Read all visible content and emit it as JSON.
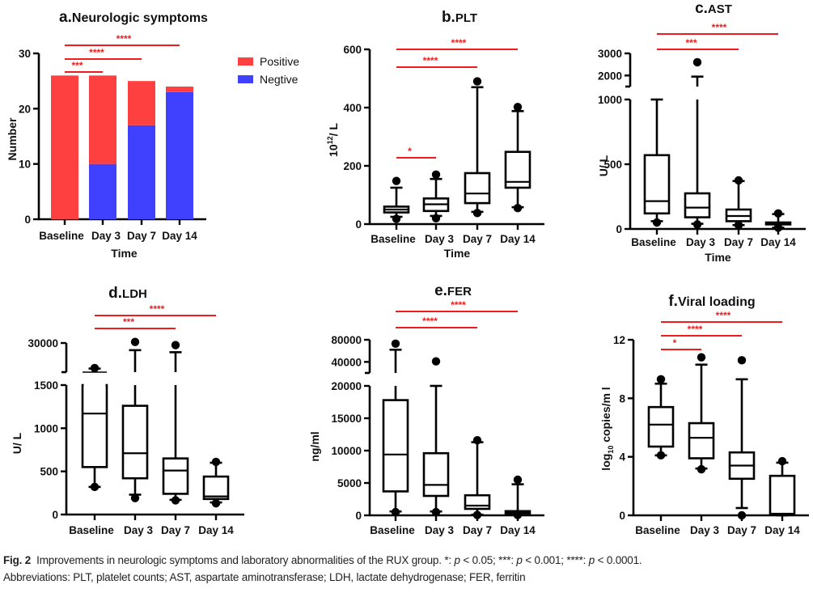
{
  "chart_data": [
    {
      "id": "a",
      "type": "bar",
      "stacked": true,
      "title_prefix": "a.",
      "title": "Neurologic symptoms",
      "xlabel": "Time",
      "ylabel": "Number",
      "categories": [
        "Baseline",
        "Day 3",
        "Day 7",
        "Day 14"
      ],
      "series": [
        {
          "name": "Negtive",
          "values": [
            0,
            10,
            17,
            23
          ],
          "color": "#4040ff"
        },
        {
          "name": "Positive",
          "values": [
            26,
            16,
            8,
            1
          ],
          "color": "#ff4040"
        }
      ],
      "legend": [
        "Positive",
        "Negtive"
      ],
      "legend_position": "right",
      "ylim": [
        0,
        30
      ],
      "yticks": [
        "0",
        "10",
        "20",
        "30"
      ],
      "significance": [
        {
          "from": "Baseline",
          "to": "Day 3",
          "label": "***"
        },
        {
          "from": "Baseline",
          "to": "Day 7",
          "label": "****"
        },
        {
          "from": "Baseline",
          "to": "Day 14",
          "label": "****"
        }
      ]
    },
    {
      "id": "b",
      "type": "box",
      "title_prefix": "b.",
      "title": "PLT",
      "xlabel": "Time",
      "ylabel_base": "10",
      "ylabel_sup": "12",
      "ylabel_rest": "/ L",
      "categories": [
        "Baseline",
        "Day 3",
        "Day 7",
        "Day 14"
      ],
      "ylim": [
        0,
        600
      ],
      "yticks": [
        "0",
        "200",
        "400",
        "600"
      ],
      "boxes": [
        {
          "min": 25,
          "q1": 40,
          "median": 50,
          "q3": 60,
          "max": 125,
          "outliers": [
            148,
            18
          ]
        },
        {
          "min": 28,
          "q1": 45,
          "median": 68,
          "q3": 88,
          "max": 155,
          "outliers": [
            170,
            20
          ]
        },
        {
          "min": 42,
          "q1": 72,
          "median": 105,
          "q3": 175,
          "max": 470,
          "outliers": [
            490,
            38
          ]
        },
        {
          "min": 58,
          "q1": 125,
          "median": 145,
          "q3": 248,
          "max": 388,
          "outliers": [
            402,
            55
          ]
        }
      ],
      "significance": [
        {
          "from": "Baseline",
          "to": "Day 3",
          "label": "*"
        },
        {
          "from": "Baseline",
          "to": "Day 7",
          "label": "****"
        },
        {
          "from": "Baseline",
          "to": "Day 14",
          "label": "****"
        }
      ]
    },
    {
      "id": "c",
      "type": "box",
      "title_prefix": "c.",
      "title": "AST",
      "xlabel": "Time",
      "ylabel": "U/ L",
      "categories": [
        "Baseline",
        "Day 3",
        "Day 7",
        "Day 14"
      ],
      "ylim_lower": [
        0,
        1000
      ],
      "ylim_upper": [
        1500,
        3000
      ],
      "yticks_lower": [
        "0",
        "500",
        "1000"
      ],
      "yticks_upper": [
        "2000",
        "3000"
      ],
      "axis_break": true,
      "boxes": [
        {
          "min": 60,
          "q1": 120,
          "median": 215,
          "q3": 570,
          "max": 1000,
          "outliers": [
            50
          ]
        },
        {
          "min": 40,
          "q1": 90,
          "median": 165,
          "q3": 275,
          "max": 1950,
          "outliers": [
            2600,
            35
          ]
        },
        {
          "min": 30,
          "q1": 60,
          "median": 100,
          "q3": 150,
          "max": 370,
          "outliers": [
            375,
            30
          ]
        },
        {
          "min": 10,
          "q1": 35,
          "median": 45,
          "q3": 50,
          "max": 115,
          "outliers": [
            120,
            10
          ]
        }
      ],
      "significance": [
        {
          "from": "Baseline",
          "to": "Day 7",
          "label": "***"
        },
        {
          "from": "Baseline",
          "to": "Day 14",
          "label": "****"
        }
      ]
    },
    {
      "id": "d",
      "type": "box",
      "title_prefix": "d.",
      "title": "LDH",
      "xlabel": "Time",
      "ylabel": "U/ L",
      "categories": [
        "Baseline",
        "Day 3",
        "Day 7",
        "Day 14"
      ],
      "ylim_lower": [
        0,
        1500
      ],
      "ylim_upper": [
        1500,
        30000
      ],
      "yticks_lower": [
        "0",
        "500",
        "1000",
        "1500"
      ],
      "yticks_upper": [
        "30000"
      ],
      "axis_break": true,
      "boxes": [
        {
          "min": 320,
          "q1": 550,
          "median": 1170,
          "q3": 1600,
          "max": 5000,
          "outliers": [
            5500,
            320
          ]
        },
        {
          "min": 230,
          "q1": 420,
          "median": 710,
          "q3": 1260,
          "max": 23000,
          "outliers": [
            31000,
            190
          ]
        },
        {
          "min": 170,
          "q1": 240,
          "median": 510,
          "q3": 650,
          "max": 21000,
          "outliers": [
            28000,
            165
          ]
        },
        {
          "min": 140,
          "q1": 180,
          "median": 210,
          "q3": 440,
          "max": 600,
          "outliers": [
            610,
            130
          ]
        }
      ],
      "significance": [
        {
          "from": "Baseline",
          "to": "Day 7",
          "label": "***"
        },
        {
          "from": "Baseline",
          "to": "Day 14",
          "label": "****"
        }
      ]
    },
    {
      "id": "e",
      "type": "box",
      "title_prefix": "e.",
      "title": "FER",
      "xlabel": "Time",
      "ylabel": "ng/ml",
      "categories": [
        "Baseline",
        "Day 3",
        "Day 7",
        "Day 14"
      ],
      "ylim_lower": [
        0,
        20000
      ],
      "ylim_upper": [
        40000,
        80000
      ],
      "yticks_lower": [
        "0",
        "5000",
        "10000",
        "15000",
        "20000"
      ],
      "yticks_upper": [
        "40000",
        "80000"
      ],
      "axis_break": true,
      "boxes": [
        {
          "min": 600,
          "q1": 3700,
          "median": 9400,
          "q3": 17800,
          "max": 62000,
          "outliers": [
            73000,
            500
          ]
        },
        {
          "min": 600,
          "q1": 3000,
          "median": 4700,
          "q3": 9600,
          "max": 20000,
          "outliers": [
            41000,
            500
          ]
        },
        {
          "min": 100,
          "q1": 1000,
          "median": 1500,
          "q3": 3100,
          "max": 11300,
          "outliers": [
            11600,
            50
          ]
        },
        {
          "min": 50,
          "q1": 300,
          "median": 500,
          "q3": 650,
          "max": 4800,
          "outliers": [
            5500,
            50
          ]
        }
      ],
      "significance": [
        {
          "from": "Baseline",
          "to": "Day 7",
          "label": "****"
        },
        {
          "from": "Baseline",
          "to": "Day 14",
          "label": "****"
        }
      ]
    },
    {
      "id": "f",
      "type": "box",
      "title_prefix": "f.",
      "title": "Viral loading",
      "xlabel": "Time",
      "ylabel_base": "log",
      "ylabel_sub": "10",
      "ylabel_rest": " copies/m l",
      "categories": [
        "Baseline",
        "Day 3",
        "Day 7",
        "Day 14"
      ],
      "ylim": [
        0,
        12
      ],
      "yticks": [
        "0",
        "4",
        "8",
        "12"
      ],
      "boxes": [
        {
          "min": 4.1,
          "q1": 4.7,
          "median": 6.2,
          "q3": 7.4,
          "max": 9.0,
          "outliers": [
            9.3,
            4.1
          ]
        },
        {
          "min": 3.2,
          "q1": 3.9,
          "median": 5.3,
          "q3": 6.3,
          "max": 10.3,
          "outliers": [
            10.8,
            3.15
          ]
        },
        {
          "min": 0.5,
          "q1": 2.5,
          "median": 3.4,
          "q3": 4.3,
          "max": 9.3,
          "outliers": [
            10.6,
            0.0
          ]
        },
        {
          "min": 0.0,
          "q1": 0.1,
          "median": 0.1,
          "q3": 2.7,
          "max": 3.6,
          "outliers": [
            3.7
          ]
        }
      ],
      "significance": [
        {
          "from": "Baseline",
          "to": "Day 3",
          "label": "*"
        },
        {
          "from": "Baseline",
          "to": "Day 7",
          "label": "****"
        },
        {
          "from": "Baseline",
          "to": "Day 14",
          "label": "****"
        }
      ]
    }
  ],
  "caption": {
    "fig_label": "Fig. 2",
    "text": "Improvements in neurologic symptoms and laboratory abnormalities of the RUX group. *: ",
    "p1": "p",
    "t1": " < 0.05; ***: ",
    "p2": "p",
    "t2": " < 0.001; ****: ",
    "p3": "p",
    "t3": " < 0.0001.",
    "line2": "Abbreviations: PLT, platelet counts; AST, aspartate aminotransferase; LDH, lactate dehydrogenase; FER, ferritin"
  },
  "colors": {
    "positive": "#ff4040",
    "negative": "#4040ff",
    "significance": "#ee1c1c",
    "axis": "#000000"
  }
}
